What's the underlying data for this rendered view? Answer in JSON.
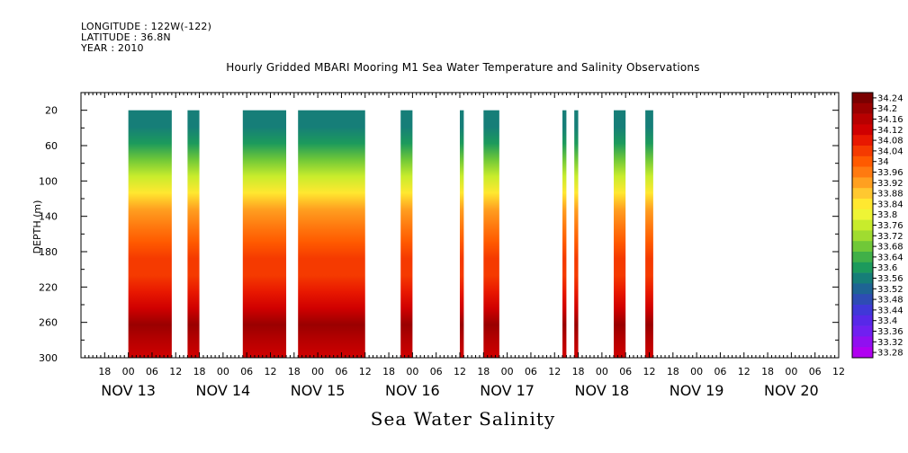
{
  "header": {
    "longitude": "LONGITUDE : 122W(-122)",
    "latitude": "LATITUDE : 36.8N",
    "year": "YEAR : 2010"
  },
  "chart_data": {
    "type": "heatmap",
    "title": "Hourly Gridded MBARI Mooring M1 Sea Water Temperature and Salinity Observations",
    "xlabel": "Sea Water Salinity",
    "ylabel": "DEPTH (m)",
    "ylim": [
      300,
      0
    ],
    "y_ticks": [
      20,
      60,
      100,
      140,
      180,
      220,
      260,
      300
    ],
    "x_start": "2010-11-12 12:00",
    "x_end": "2010-11-20 12:00",
    "x_hour_ticks": [
      "18",
      "00",
      "06",
      "12",
      "18",
      "00",
      "06",
      "12",
      "18",
      "00",
      "06",
      "12",
      "18",
      "00",
      "06",
      "12",
      "18",
      "00",
      "06",
      "12",
      "18",
      "00",
      "06",
      "12",
      "18",
      "00",
      "06",
      "12",
      "18",
      "00",
      "06",
      "12"
    ],
    "x_day_labels": [
      {
        "label": "NOV 13",
        "hours_from_start": 12
      },
      {
        "label": "NOV 14",
        "hours_from_start": 36
      },
      {
        "label": "NOV 15",
        "hours_from_start": 60
      },
      {
        "label": "NOV 16",
        "hours_from_start": 84
      },
      {
        "label": "NOV 17",
        "hours_from_start": 108
      },
      {
        "label": "NOV 18",
        "hours_from_start": 132
      },
      {
        "label": "NOV 19",
        "hours_from_start": 156
      },
      {
        "label": "NOV 20",
        "hours_from_start": 180
      }
    ],
    "colorbar": {
      "levels": [
        "34.24",
        "34.2",
        "34.16",
        "34.12",
        "34.08",
        "34.04",
        "34",
        "33.96",
        "33.92",
        "33.88",
        "33.84",
        "33.8",
        "33.76",
        "33.72",
        "33.68",
        "33.64",
        "33.6",
        "33.56",
        "33.52",
        "33.48",
        "33.44",
        "33.4",
        "33.36",
        "33.32",
        "33.28"
      ],
      "colors": [
        "#7a0000",
        "#9a0000",
        "#b80000",
        "#d00000",
        "#e81800",
        "#f53a00",
        "#ff5a00",
        "#ff7a10",
        "#ffa020",
        "#ffc830",
        "#ffe830",
        "#eef535",
        "#c8ec2c",
        "#a0dc30",
        "#70c838",
        "#40b048",
        "#1c9a5c",
        "#167e78",
        "#1e6494",
        "#2e4cb4",
        "#4038d8",
        "#5828e8",
        "#7020f0",
        "#9010f0",
        "#b000f0"
      ]
    },
    "data_blocks": [
      {
        "start": "2010-11-13 00:00",
        "end": "2010-11-13 11:00",
        "min_depth": 20,
        "max_depth": 300
      },
      {
        "start": "2010-11-13 15:00",
        "end": "2010-11-13 18:00",
        "min_depth": 20,
        "max_depth": 300
      },
      {
        "start": "2010-11-14 05:00",
        "end": "2010-11-14 16:00",
        "min_depth": 20,
        "max_depth": 300
      },
      {
        "start": "2010-11-14 19:00",
        "end": "2010-11-15 12:00",
        "min_depth": 20,
        "max_depth": 300
      },
      {
        "start": "2010-11-15 21:00",
        "end": "2010-11-16 00:00",
        "min_depth": 20,
        "max_depth": 300
      },
      {
        "start": "2010-11-16 12:00",
        "end": "2010-11-16 13:00",
        "min_depth": 20,
        "max_depth": 300
      },
      {
        "start": "2010-11-16 18:00",
        "end": "2010-11-16 22:00",
        "min_depth": 20,
        "max_depth": 300
      },
      {
        "start": "2010-11-17 14:00",
        "end": "2010-11-17 15:00",
        "min_depth": 20,
        "max_depth": 300
      },
      {
        "start": "2010-11-17 17:00",
        "end": "2010-11-17 18:00",
        "min_depth": 20,
        "max_depth": 300
      },
      {
        "start": "2010-11-18 03:00",
        "end": "2010-11-18 06:00",
        "min_depth": 20,
        "max_depth": 300
      },
      {
        "start": "2010-11-18 11:00",
        "end": "2010-11-18 13:00",
        "min_depth": 20,
        "max_depth": 300
      }
    ],
    "depth_profile": [
      {
        "depth": 20,
        "salinity": 33.56
      },
      {
        "depth": 40,
        "salinity": 33.62
      },
      {
        "depth": 60,
        "salinity": 33.68
      },
      {
        "depth": 80,
        "salinity": 33.76
      },
      {
        "depth": 100,
        "salinity": 33.84
      },
      {
        "depth": 120,
        "salinity": 33.92
      },
      {
        "depth": 140,
        "salinity": 33.98
      },
      {
        "depth": 160,
        "salinity": 34.03
      },
      {
        "depth": 180,
        "salinity": 34.04
      },
      {
        "depth": 200,
        "salinity": 34.06
      },
      {
        "depth": 220,
        "salinity": 34.1
      },
      {
        "depth": 240,
        "salinity": 34.15
      },
      {
        "depth": 260,
        "salinity": 34.2
      },
      {
        "depth": 280,
        "salinity": 34.16
      },
      {
        "depth": 300,
        "salinity": 34.12
      }
    ]
  }
}
